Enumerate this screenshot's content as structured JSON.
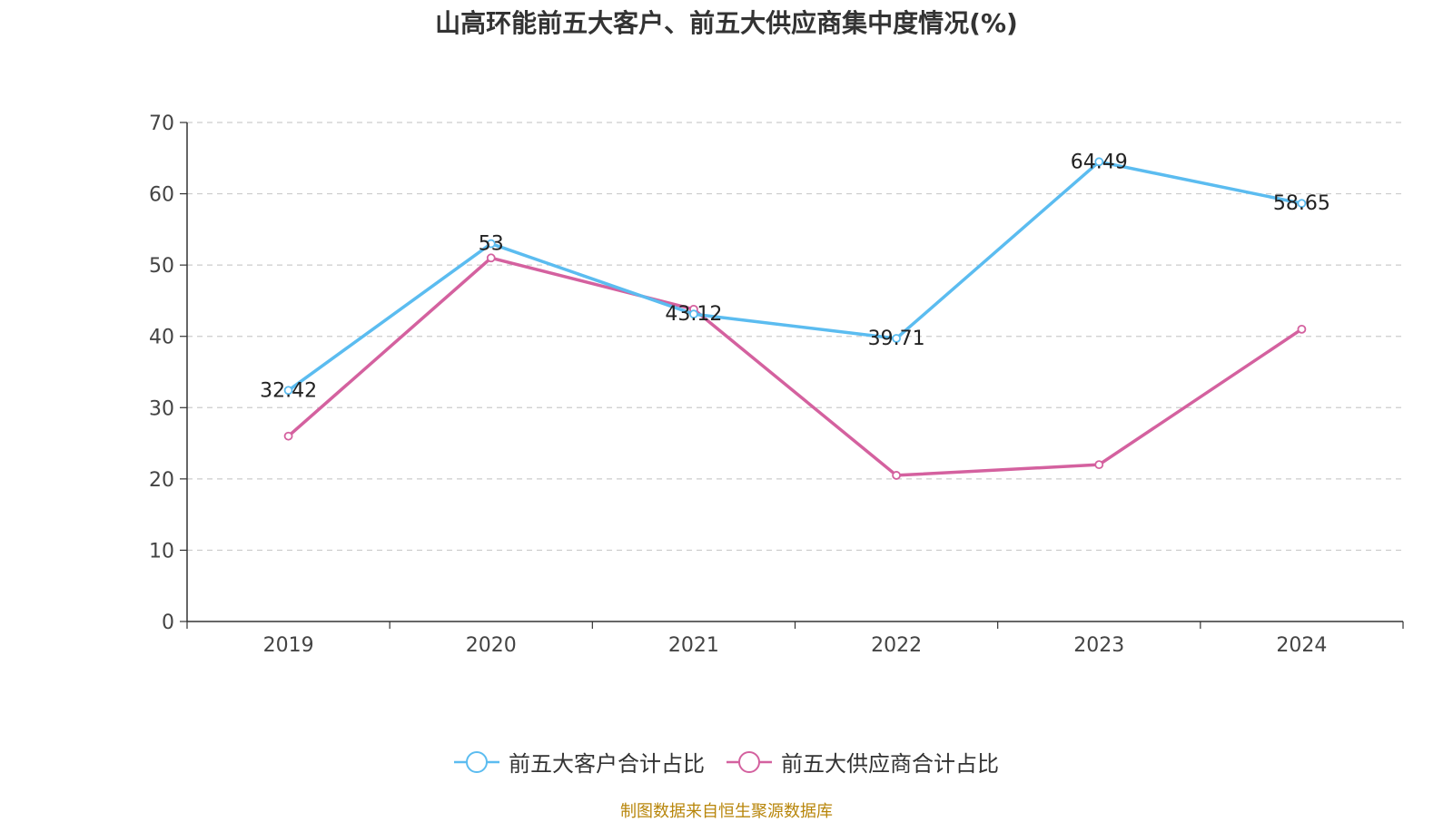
{
  "title": "山高环能前五大客户、前五大供应商集中度情况(%)",
  "source": "制图数据来自恒生聚源数据库",
  "colors": {
    "customers": "#5bbcf0",
    "suppliers": "#d4619f",
    "axis": "#333333",
    "grid": "#cccccc",
    "source": "#b8860b"
  },
  "chart_data": {
    "type": "line",
    "title": "山高环能前五大客户、前五大供应商集中度情况(%)",
    "categories": [
      "2019",
      "2020",
      "2021",
      "2022",
      "2023",
      "2024"
    ],
    "ylim": [
      0,
      70
    ],
    "yticks": [
      0,
      10,
      20,
      30,
      40,
      50,
      60,
      70
    ],
    "grid": true,
    "legend_position": "bottom-center",
    "series": [
      {
        "name": "前五大客户合计占比",
        "values": [
          32.42,
          53,
          43.12,
          39.71,
          64.49,
          58.65
        ],
        "labels": [
          "32.42",
          "53",
          "43.12",
          "39.71",
          "64.49",
          "58.65"
        ],
        "color": "#5bbcf0"
      },
      {
        "name": "前五大供应商合计占比",
        "values": [
          26.0,
          51.0,
          43.8,
          20.5,
          22.0,
          41.0
        ],
        "labels": [],
        "color": "#d4619f"
      }
    ]
  }
}
